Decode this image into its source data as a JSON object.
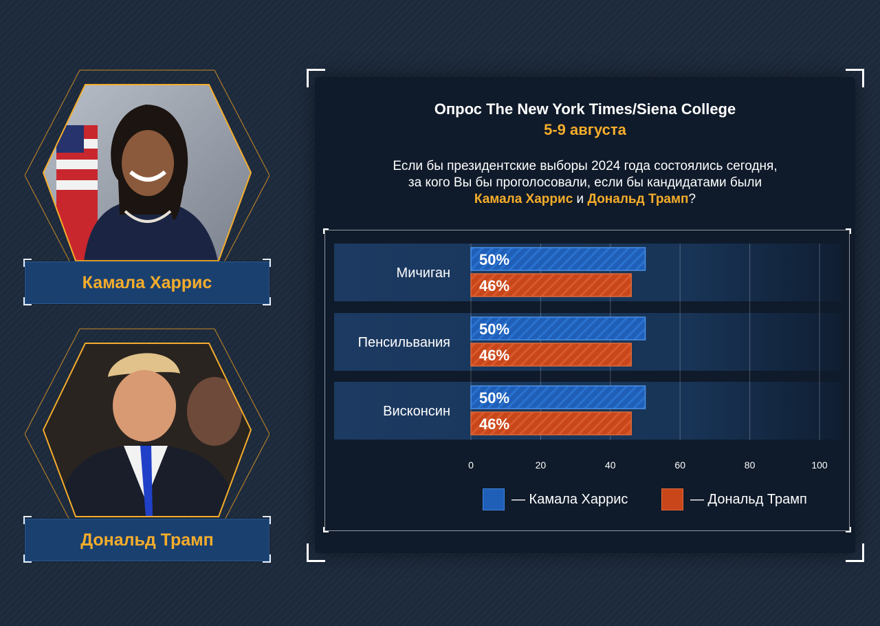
{
  "candidates": [
    {
      "name": "Камала Харрис"
    },
    {
      "name": "Дональд Трамп"
    }
  ],
  "title": "Опрос The New York Times/Siena College",
  "subtitle": "5-9 августа",
  "question": {
    "line1": "Если бы президентские выборы 2024 года  состоялись сегодня,",
    "line2": "за кого Вы бы проголосовали, если бы кандидатами были",
    "name1": "Камала Харрис",
    "conj": " и ",
    "name2": "Дональд Трамп",
    "end": "?"
  },
  "colors": {
    "harris": "#1f5fb8",
    "trump": "#c8461a",
    "accent": "#f5ad2b"
  },
  "chart_data": {
    "type": "bar",
    "orientation": "horizontal",
    "categories": [
      "Мичиган",
      "Пенсильвания",
      "Висконсин"
    ],
    "series": [
      {
        "name": "Камала Харрис",
        "values": [
          50,
          50,
          50
        ],
        "labels": [
          "50%",
          "50%",
          "50%"
        ],
        "color": "#1f5fb8"
      },
      {
        "name": "Дональд Трамп",
        "values": [
          46,
          46,
          46
        ],
        "labels": [
          "46%",
          "46%",
          "46%"
        ],
        "color": "#c8461a"
      }
    ],
    "xlim": [
      0,
      100
    ],
    "xticks": [
      "0",
      "20",
      "40",
      "60",
      "80",
      "100"
    ],
    "grid": true,
    "legend": [
      {
        "label": "— Камала Харрис"
      },
      {
        "label": "— Дональд Трамп"
      }
    ],
    "legend_position": "bottom-right"
  }
}
